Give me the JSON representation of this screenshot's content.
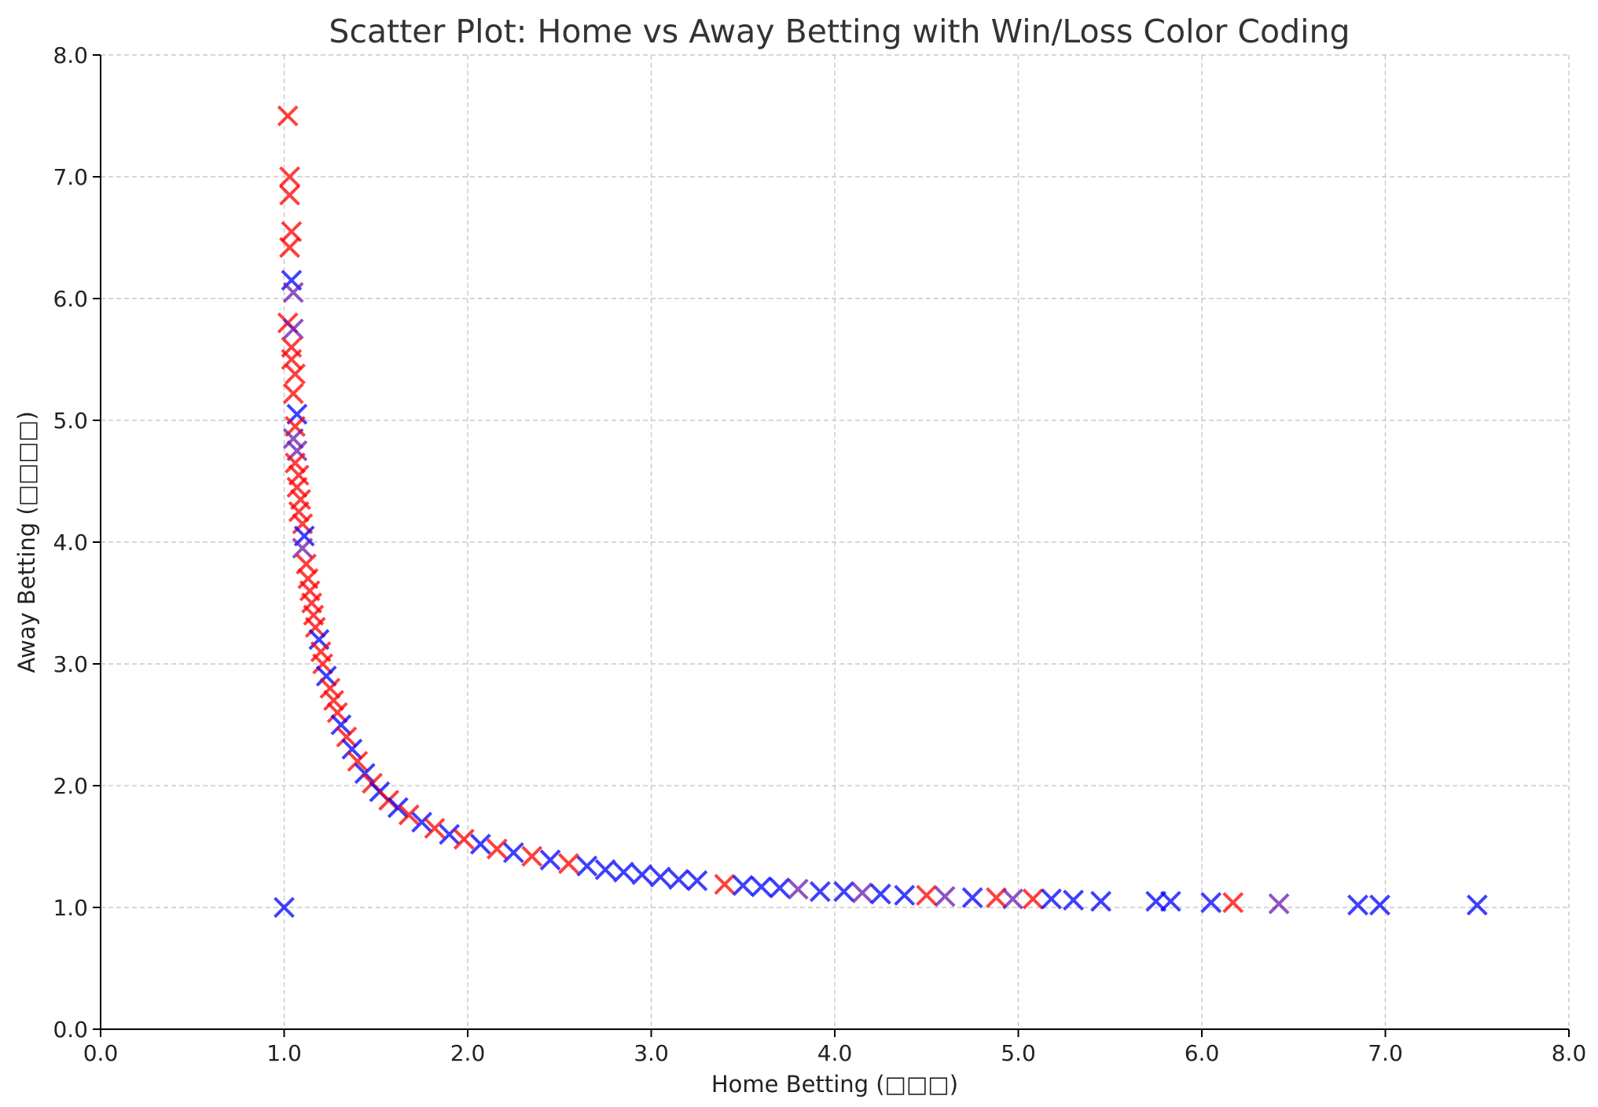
{
  "chart_data": {
    "type": "scatter",
    "title": "Scatter Plot: Home vs Away Betting with Win/Loss Color Coding",
    "xlabel": "Home Betting (□□□)",
    "ylabel": "Away Betting (□□□□)",
    "xlim": [
      0,
      8
    ],
    "ylim": [
      0,
      8
    ],
    "x_ticks": [
      "0.0",
      "1.0",
      "2.0",
      "3.0",
      "4.0",
      "5.0",
      "6.0",
      "7.0",
      "8.0"
    ],
    "y_ticks": [
      "0.0",
      "1.0",
      "2.0",
      "3.0",
      "4.0",
      "5.0",
      "6.0",
      "7.0",
      "8.0"
    ],
    "grid": true,
    "marker": "x",
    "colors": {
      "win": "#ff0000",
      "loss": "#0000ff",
      "mixed": "#6a1ab0"
    },
    "points": [
      {
        "x": 1.02,
        "y": 7.5,
        "c": "win"
      },
      {
        "x": 1.03,
        "y": 7.0,
        "c": "win"
      },
      {
        "x": 1.03,
        "y": 6.85,
        "c": "win"
      },
      {
        "x": 1.04,
        "y": 6.55,
        "c": "win"
      },
      {
        "x": 1.03,
        "y": 6.42,
        "c": "win"
      },
      {
        "x": 1.04,
        "y": 6.15,
        "c": "loss"
      },
      {
        "x": 1.05,
        "y": 6.05,
        "c": "mixed"
      },
      {
        "x": 1.02,
        "y": 5.8,
        "c": "win"
      },
      {
        "x": 1.05,
        "y": 5.75,
        "c": "mixed"
      },
      {
        "x": 1.04,
        "y": 5.6,
        "c": "win"
      },
      {
        "x": 1.04,
        "y": 5.5,
        "c": "win"
      },
      {
        "x": 1.06,
        "y": 5.38,
        "c": "win"
      },
      {
        "x": 1.05,
        "y": 5.22,
        "c": "win"
      },
      {
        "x": 1.07,
        "y": 5.05,
        "c": "loss"
      },
      {
        "x": 1.06,
        "y": 4.95,
        "c": "win"
      },
      {
        "x": 1.05,
        "y": 4.85,
        "c": "mixed"
      },
      {
        "x": 1.07,
        "y": 4.75,
        "c": "mixed"
      },
      {
        "x": 1.06,
        "y": 4.65,
        "c": "win"
      },
      {
        "x": 1.08,
        "y": 4.55,
        "c": "win"
      },
      {
        "x": 1.07,
        "y": 4.45,
        "c": "win"
      },
      {
        "x": 1.09,
        "y": 4.35,
        "c": "win"
      },
      {
        "x": 1.08,
        "y": 4.25,
        "c": "win"
      },
      {
        "x": 1.1,
        "y": 4.15,
        "c": "win"
      },
      {
        "x": 1.11,
        "y": 4.05,
        "c": "loss"
      },
      {
        "x": 1.1,
        "y": 3.95,
        "c": "mixed"
      },
      {
        "x": 1.12,
        "y": 3.82,
        "c": "win"
      },
      {
        "x": 1.13,
        "y": 3.7,
        "c": "win"
      },
      {
        "x": 1.14,
        "y": 3.6,
        "c": "win"
      },
      {
        "x": 1.15,
        "y": 3.5,
        "c": "win"
      },
      {
        "x": 1.16,
        "y": 3.4,
        "c": "win"
      },
      {
        "x": 1.17,
        "y": 3.3,
        "c": "win"
      },
      {
        "x": 1.19,
        "y": 3.2,
        "c": "loss"
      },
      {
        "x": 1.2,
        "y": 3.1,
        "c": "win"
      },
      {
        "x": 1.21,
        "y": 3.0,
        "c": "win"
      },
      {
        "x": 1.23,
        "y": 2.9,
        "c": "loss"
      },
      {
        "x": 1.25,
        "y": 2.8,
        "c": "win"
      },
      {
        "x": 1.27,
        "y": 2.7,
        "c": "win"
      },
      {
        "x": 1.29,
        "y": 2.6,
        "c": "win"
      },
      {
        "x": 1.31,
        "y": 2.5,
        "c": "loss"
      },
      {
        "x": 1.34,
        "y": 2.4,
        "c": "win"
      },
      {
        "x": 1.37,
        "y": 2.3,
        "c": "loss"
      },
      {
        "x": 1.4,
        "y": 2.2,
        "c": "win"
      },
      {
        "x": 1.44,
        "y": 2.1,
        "c": "loss"
      },
      {
        "x": 1.48,
        "y": 2.02,
        "c": "win"
      },
      {
        "x": 1.52,
        "y": 1.95,
        "c": "loss"
      },
      {
        "x": 1.57,
        "y": 1.88,
        "c": "win"
      },
      {
        "x": 1.62,
        "y": 1.82,
        "c": "loss"
      },
      {
        "x": 1.68,
        "y": 1.76,
        "c": "win"
      },
      {
        "x": 1.75,
        "y": 1.7,
        "c": "loss"
      },
      {
        "x": 1.82,
        "y": 1.65,
        "c": "win"
      },
      {
        "x": 1.9,
        "y": 1.6,
        "c": "loss"
      },
      {
        "x": 1.98,
        "y": 1.56,
        "c": "win"
      },
      {
        "x": 2.07,
        "y": 1.52,
        "c": "loss"
      },
      {
        "x": 2.16,
        "y": 1.48,
        "c": "win"
      },
      {
        "x": 2.25,
        "y": 1.45,
        "c": "loss"
      },
      {
        "x": 2.35,
        "y": 1.42,
        "c": "win"
      },
      {
        "x": 2.45,
        "y": 1.39,
        "c": "loss"
      },
      {
        "x": 2.55,
        "y": 1.36,
        "c": "win"
      },
      {
        "x": 2.65,
        "y": 1.34,
        "c": "loss"
      },
      {
        "x": 2.75,
        "y": 1.31,
        "c": "loss"
      },
      {
        "x": 2.85,
        "y": 1.29,
        "c": "loss"
      },
      {
        "x": 2.95,
        "y": 1.27,
        "c": "loss"
      },
      {
        "x": 3.05,
        "y": 1.25,
        "c": "loss"
      },
      {
        "x": 3.15,
        "y": 1.23,
        "c": "loss"
      },
      {
        "x": 3.25,
        "y": 1.22,
        "c": "loss"
      },
      {
        "x": 3.4,
        "y": 1.19,
        "c": "win"
      },
      {
        "x": 3.5,
        "y": 1.18,
        "c": "loss"
      },
      {
        "x": 3.6,
        "y": 1.17,
        "c": "loss"
      },
      {
        "x": 3.7,
        "y": 1.16,
        "c": "loss"
      },
      {
        "x": 3.8,
        "y": 1.15,
        "c": "mixed"
      },
      {
        "x": 3.92,
        "y": 1.13,
        "c": "loss"
      },
      {
        "x": 4.05,
        "y": 1.13,
        "c": "loss"
      },
      {
        "x": 4.15,
        "y": 1.12,
        "c": "mixed"
      },
      {
        "x": 4.25,
        "y": 1.11,
        "c": "loss"
      },
      {
        "x": 4.38,
        "y": 1.1,
        "c": "loss"
      },
      {
        "x": 4.5,
        "y": 1.1,
        "c": "win"
      },
      {
        "x": 4.6,
        "y": 1.09,
        "c": "mixed"
      },
      {
        "x": 4.75,
        "y": 1.08,
        "c": "loss"
      },
      {
        "x": 4.88,
        "y": 1.08,
        "c": "win"
      },
      {
        "x": 4.97,
        "y": 1.07,
        "c": "mixed"
      },
      {
        "x": 5.08,
        "y": 1.07,
        "c": "win"
      },
      {
        "x": 5.18,
        "y": 1.07,
        "c": "loss"
      },
      {
        "x": 5.3,
        "y": 1.06,
        "c": "loss"
      },
      {
        "x": 5.45,
        "y": 1.05,
        "c": "loss"
      },
      {
        "x": 5.75,
        "y": 1.05,
        "c": "loss"
      },
      {
        "x": 5.83,
        "y": 1.05,
        "c": "loss"
      },
      {
        "x": 6.05,
        "y": 1.04,
        "c": "loss"
      },
      {
        "x": 6.17,
        "y": 1.04,
        "c": "win"
      },
      {
        "x": 6.42,
        "y": 1.03,
        "c": "mixed"
      },
      {
        "x": 6.85,
        "y": 1.02,
        "c": "loss"
      },
      {
        "x": 6.97,
        "y": 1.02,
        "c": "loss"
      },
      {
        "x": 7.5,
        "y": 1.02,
        "c": "loss"
      },
      {
        "x": 1.0,
        "y": 1.0,
        "c": "loss"
      }
    ]
  }
}
